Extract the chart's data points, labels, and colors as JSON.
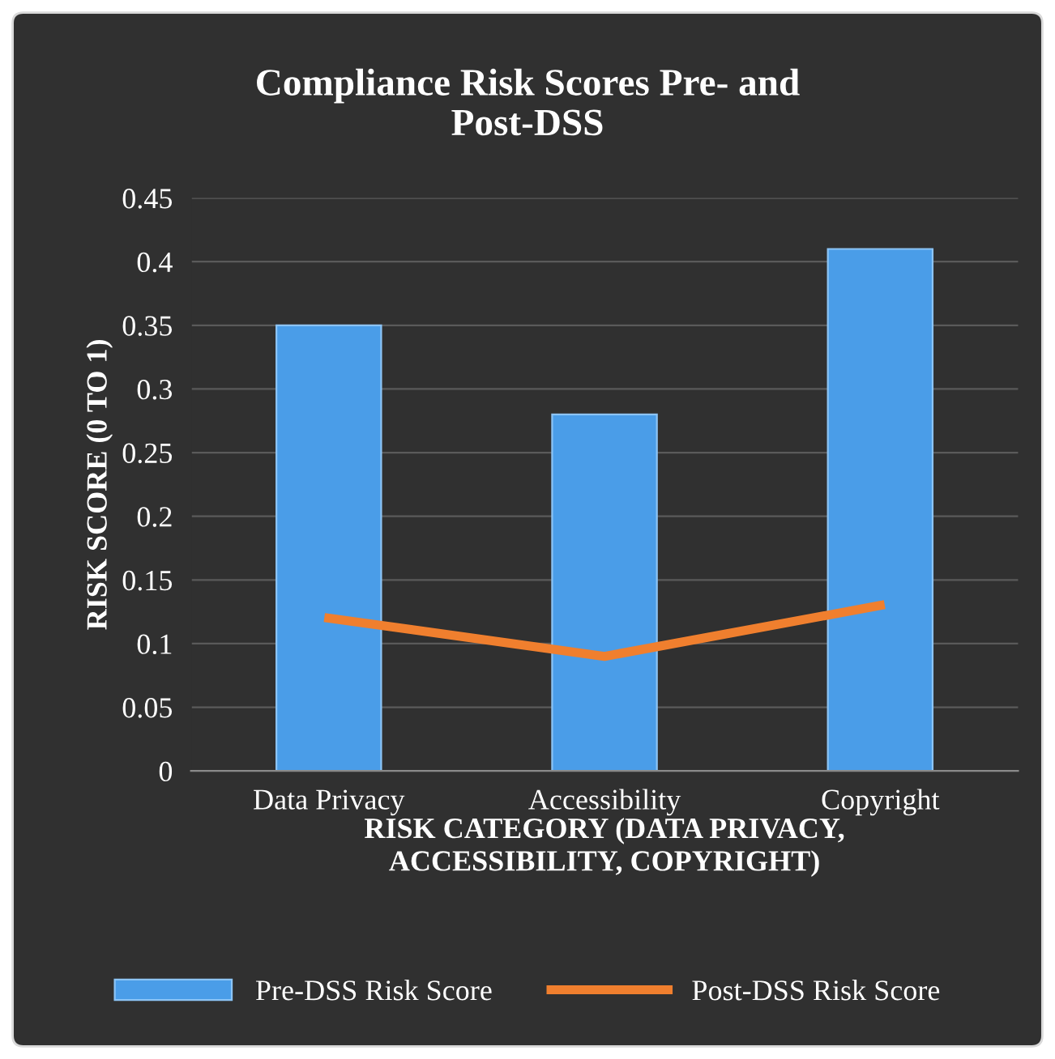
{
  "chart_data": {
    "type": "bar",
    "title": "Compliance Risk Scores Pre- and Post-DSS",
    "xlabel": "RISK CATEGORY (DATA PRIVACY, ACCESSIBILITY, COPYRIGHT)",
    "ylabel": "RISK SCORE (0 TO 1)",
    "categories": [
      "Data Privacy",
      "Accessibility",
      "Copyright"
    ],
    "series": [
      {
        "name": "Pre-DSS Risk Score",
        "color": "#4a9de8",
        "values": [
          0.35,
          0.28,
          0.41
        ]
      },
      {
        "name": "Post-DSS Risk Score",
        "type": "line",
        "color": "#f07f2e",
        "values": [
          0.12,
          0.09,
          0.13
        ]
      }
    ],
    "ylim": [
      0,
      0.45
    ],
    "yticks": [
      0,
      0.05,
      0.1,
      0.15,
      0.2,
      0.25,
      0.3,
      0.35,
      0.4,
      0.45
    ],
    "grid": "y",
    "legend": "bottom",
    "marker": "none",
    "line_style": "solid"
  }
}
